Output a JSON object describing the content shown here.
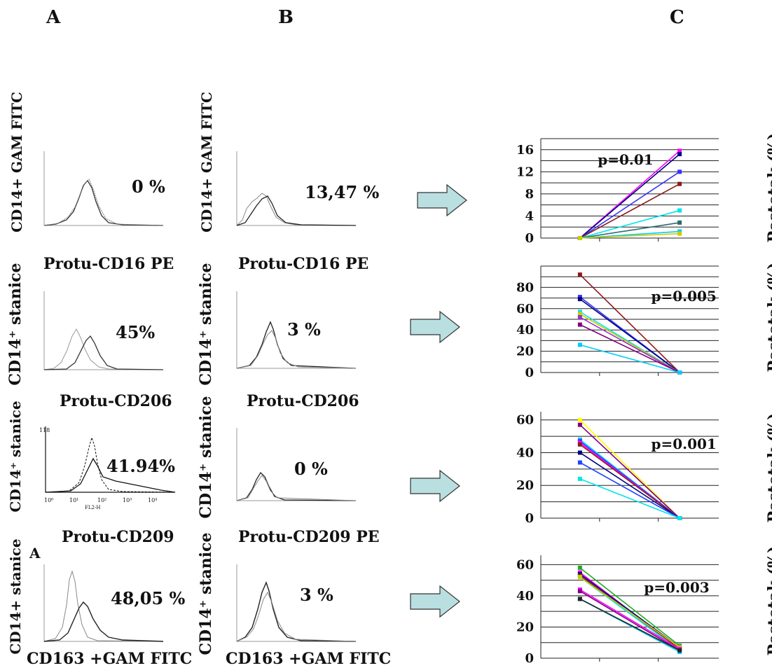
{
  "headers": {
    "a": "A",
    "b": "B",
    "c": "C"
  },
  "panel_a": {
    "rows": [
      {
        "ylabel": "CD14+ GAM FITC",
        "percent": "0 %",
        "xlabel": "Protu-CD16 PE"
      },
      {
        "ylabel": "CD14⁺ stanice",
        "percent": "45%",
        "xlabel": "Protu-CD206"
      },
      {
        "ylabel": "CD14⁺ stanice",
        "percent": "41.94%",
        "xlabel": "Protu-CD209"
      },
      {
        "ylabel": "CD14+ stanice",
        "percent": "48,05 %",
        "xlabel": "CD163 +GAM FITC",
        "corner_letter": "A"
      }
    ]
  },
  "panel_b": {
    "rows": [
      {
        "ylabel": "CD14+ GAM FITC",
        "percent": "13,47 %",
        "xlabel": "Protu-CD16 PE"
      },
      {
        "ylabel": "CD14⁺ stanice",
        "percent": "3 %",
        "xlabel": "Protu-CD206"
      },
      {
        "ylabel": "CD14⁺ stanice",
        "percent": "0 %",
        "xlabel": "Protu-CD209 PE"
      },
      {
        "ylabel": "CD14⁺ stanice",
        "percent": "3 %",
        "xlabel": "CD163 +GAM FITC"
      }
    ]
  },
  "panel_c_ylabel": "Postotak (%)",
  "chart_data": [
    {
      "type": "line",
      "title": "",
      "p_value": "p=0.01",
      "yticks": [
        "0",
        "4",
        "8",
        "12",
        "16"
      ],
      "ylim": [
        0,
        18
      ],
      "series": [
        {
          "color": "#ff00ff",
          "values": [
            0,
            15.8
          ]
        },
        {
          "color": "#000080",
          "values": [
            0,
            15.2
          ]
        },
        {
          "color": "#3333ff",
          "values": [
            0,
            12.0
          ]
        },
        {
          "color": "#8b1a1a",
          "values": [
            0,
            9.8
          ]
        },
        {
          "color": "#00e5ee",
          "values": [
            0,
            5.0
          ]
        },
        {
          "color": "#2e6b6b",
          "values": [
            0,
            2.8
          ]
        },
        {
          "color": "#00ccff",
          "values": [
            0,
            1.2
          ]
        },
        {
          "color": "#cccc00",
          "values": [
            0,
            0.8
          ]
        }
      ]
    },
    {
      "type": "line",
      "title": "",
      "p_value": "p=0.005",
      "yticks": [
        "0",
        "20",
        "40",
        "60",
        "80"
      ],
      "ylim": [
        0,
        100
      ],
      "series": [
        {
          "color": "#8b1a1a",
          "values": [
            92,
            0
          ]
        },
        {
          "color": "#3333ff",
          "values": [
            71,
            0
          ]
        },
        {
          "color": "#000080",
          "values": [
            69,
            0
          ]
        },
        {
          "color": "#00e5ee",
          "values": [
            57,
            0
          ]
        },
        {
          "color": "#cccc00",
          "values": [
            55,
            0
          ]
        },
        {
          "color": "#9933cc",
          "values": [
            52,
            0
          ]
        },
        {
          "color": "#800080",
          "values": [
            45,
            0
          ]
        },
        {
          "color": "#00ccff",
          "values": [
            26,
            0
          ]
        }
      ]
    },
    {
      "type": "line",
      "title": "",
      "p_value": "p=0.001",
      "yticks": [
        "0",
        "20",
        "40",
        "60"
      ],
      "ylim": [
        0,
        65
      ],
      "series": [
        {
          "color": "#ffff00",
          "values": [
            60,
            0
          ]
        },
        {
          "color": "#800080",
          "values": [
            57,
            0
          ]
        },
        {
          "color": "#00ccff",
          "values": [
            48,
            0
          ]
        },
        {
          "color": "#3333ff",
          "values": [
            47,
            0
          ]
        },
        {
          "color": "#ff00ff",
          "values": [
            46,
            0
          ]
        },
        {
          "color": "#8b1a1a",
          "values": [
            45,
            0
          ]
        },
        {
          "color": "#000080",
          "values": [
            40,
            0
          ]
        },
        {
          "color": "#2244ff",
          "values": [
            34,
            0
          ]
        },
        {
          "color": "#00e5ee",
          "values": [
            24,
            0
          ]
        }
      ]
    },
    {
      "type": "line",
      "title": "",
      "p_value": "p=0.003",
      "yticks": [
        "0",
        "20",
        "40",
        "60"
      ],
      "ylim": [
        0,
        66
      ],
      "series": [
        {
          "color": "#22aa22",
          "values": [
            58,
            8
          ]
        },
        {
          "color": "#ff00ff",
          "values": [
            55,
            6
          ]
        },
        {
          "color": "#000080",
          "values": [
            54,
            7
          ]
        },
        {
          "color": "#8b1a1a",
          "values": [
            53,
            6
          ]
        },
        {
          "color": "#00e5ee",
          "values": [
            52,
            5
          ]
        },
        {
          "color": "#cccc00",
          "values": [
            52,
            7
          ]
        },
        {
          "color": "#ff00ff",
          "values": [
            44,
            6
          ]
        },
        {
          "color": "#800080",
          "values": [
            43,
            5
          ]
        },
        {
          "color": "#00ccff",
          "values": [
            38,
            4
          ]
        },
        {
          "color": "#222222",
          "values": [
            38,
            5
          ]
        }
      ]
    }
  ]
}
